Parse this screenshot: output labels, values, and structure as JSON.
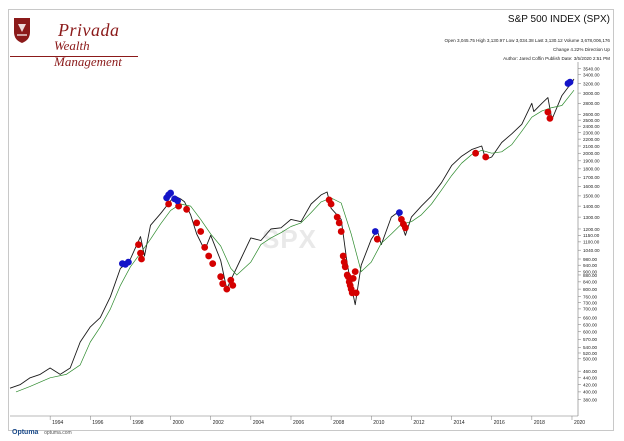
{
  "brand": {
    "name": "Privada",
    "subtitle": "Wealth Management"
  },
  "header": {
    "title": "S&P 500 INDEX (SPX)",
    "stats": "Open 3,045.75   High 3,130.97   Low 3,034.38   Last 3,130.12   Volume 3,678,006,176",
    "change": "Change 4.22%   Direction Up",
    "author": "Author: Jared Coffin    Publish Date: 3/5/2020 2:51 PM"
  },
  "watermark": "SPX",
  "footer": {
    "logo": "Optuma",
    "url": "optuma.com"
  },
  "chart_data": {
    "type": "line",
    "yscale": "log",
    "ylim": [
      340,
      3700
    ],
    "xlim": [
      1992.0,
      2020.3
    ],
    "x_ticks": [
      "1994",
      "1996",
      "1998",
      "2000",
      "2002",
      "2004",
      "2006",
      "2008",
      "2010",
      "2012",
      "2014",
      "2016",
      "2018",
      "2020"
    ],
    "y_ticks": [
      "380.00",
      "400.00",
      "420.00",
      "440.00",
      "460.00",
      "500.00",
      "520.00",
      "540.00",
      "570.00",
      "600.00",
      "630.00",
      "660.00",
      "700.00",
      "730.00",
      "760.00",
      "800.00",
      "840.00",
      "880.00",
      "900.00",
      "940.00",
      "980.00",
      "1040.00",
      "1100.00",
      "1150.00",
      "1200.00",
      "1300.00",
      "1400.00",
      "1500.00",
      "1600.00",
      "1700.00",
      "1800.00",
      "1900.00",
      "2000.00",
      "2100.00",
      "2200.00",
      "2300.00",
      "2400.00",
      "2500.00",
      "2600.00",
      "2800.00",
      "3000.00",
      "3200.00",
      "3400.00",
      "3540.00"
    ],
    "series": [
      {
        "type": "line",
        "color": "#1a1a1a",
        "x": [
          1992.0,
          1992.5,
          1993.0,
          1993.5,
          1994.0,
          1994.5,
          1995.0,
          1995.5,
          1996.0,
          1996.5,
          1997.0,
          1997.5,
          1997.8,
          1998.0,
          1998.5,
          1998.7,
          1999.0,
          1999.5,
          2000.0,
          2000.2,
          2000.5,
          2000.7,
          2001.0,
          2001.3,
          2001.7,
          2002.0,
          2002.5,
          2002.8,
          2003.0,
          2003.5,
          2004.0,
          2004.5,
          2005.0,
          2005.5,
          2006.0,
          2006.5,
          2007.0,
          2007.5,
          2007.8,
          2008.0,
          2008.5,
          2008.8,
          2009.0,
          2009.2,
          2009.5,
          2010.0,
          2010.3,
          2010.5,
          2011.0,
          2011.3,
          2011.7,
          2012.0,
          2012.5,
          2013.0,
          2013.5,
          2014.0,
          2014.5,
          2015.0,
          2015.5,
          2015.7,
          2016.0,
          2016.5,
          2017.0,
          2017.5,
          2018.0,
          2018.1,
          2018.5,
          2018.8,
          2019.0,
          2019.5,
          2020.0,
          2020.1
        ],
        "y": [
          410,
          420,
          440,
          450,
          470,
          450,
          470,
          560,
          620,
          660,
          760,
          920,
          950,
          980,
          1140,
          1000,
          1230,
          1330,
          1450,
          1500,
          1470,
          1440,
          1320,
          1160,
          1040,
          1150,
          970,
          800,
          850,
          980,
          1130,
          1110,
          1200,
          1210,
          1280,
          1260,
          1420,
          1510,
          1540,
          1380,
          1280,
          950,
          820,
          720,
          940,
          1120,
          1190,
          1080,
          1300,
          1340,
          1150,
          1300,
          1400,
          1500,
          1640,
          1840,
          1960,
          2050,
          2100,
          1920,
          1950,
          2150,
          2280,
          2430,
          2800,
          2650,
          2800,
          2910,
          2510,
          2950,
          3230,
          3300
        ]
      },
      {
        "type": "line",
        "color": "#2e8b2e",
        "x": [
          1992.3,
          1993.0,
          1994.0,
          1994.8,
          1995.5,
          1996.0,
          1996.5,
          1997.0,
          1997.5,
          1998.0,
          1998.5,
          1999.0,
          1999.5,
          2000.0,
          2000.5,
          2001.0,
          2001.5,
          2002.0,
          2002.5,
          2003.0,
          2003.3,
          2004.0,
          2004.5,
          2005.0,
          2005.5,
          2006.0,
          2006.5,
          2007.0,
          2007.5,
          2008.0,
          2008.5,
          2009.0,
          2009.5,
          2010.0,
          2010.5,
          2011.0,
          2011.5,
          2012.0,
          2012.5,
          2013.0,
          2013.5,
          2014.0,
          2014.5,
          2015.0,
          2015.5,
          2016.0,
          2016.5,
          2017.0,
          2017.5,
          2018.0,
          2018.5,
          2019.0,
          2019.5,
          2020.1
        ],
        "y": [
          400,
          415,
          440,
          450,
          480,
          560,
          620,
          700,
          820,
          930,
          1020,
          1120,
          1240,
          1360,
          1420,
          1400,
          1280,
          1160,
          1070,
          920,
          880,
          960,
          1080,
          1130,
          1170,
          1220,
          1250,
          1340,
          1440,
          1480,
          1430,
          1160,
          900,
          960,
          1090,
          1160,
          1240,
          1260,
          1320,
          1420,
          1560,
          1720,
          1870,
          1980,
          2040,
          2000,
          2020,
          2120,
          2320,
          2550,
          2660,
          2720,
          2760,
          3060
        ]
      }
    ],
    "markers": [
      {
        "color": "#d40000",
        "points": [
          [
            1998.4,
            1080
          ],
          [
            1998.5,
            1020
          ],
          [
            1998.55,
            980
          ],
          [
            1999.9,
            1420
          ],
          [
            2000.4,
            1400
          ],
          [
            2000.8,
            1370
          ],
          [
            2001.3,
            1250
          ],
          [
            2001.5,
            1180
          ],
          [
            2001.7,
            1060
          ],
          [
            2001.9,
            1000
          ],
          [
            2002.1,
            950
          ],
          [
            2002.5,
            870
          ],
          [
            2002.6,
            830
          ],
          [
            2002.8,
            800
          ],
          [
            2003.0,
            850
          ],
          [
            2003.1,
            820
          ],
          [
            2007.9,
            1460
          ],
          [
            2008.0,
            1420
          ],
          [
            2008.3,
            1300
          ],
          [
            2008.4,
            1250
          ],
          [
            2008.5,
            1180
          ],
          [
            2008.6,
            1000
          ],
          [
            2008.65,
            960
          ],
          [
            2008.7,
            930
          ],
          [
            2008.8,
            880
          ],
          [
            2008.85,
            870
          ],
          [
            2008.9,
            840
          ],
          [
            2008.95,
            820
          ],
          [
            2009.0,
            800
          ],
          [
            2009.05,
            780
          ],
          [
            2009.1,
            860
          ],
          [
            2009.2,
            900
          ],
          [
            2009.25,
            780
          ],
          [
            2010.3,
            1120
          ],
          [
            2011.5,
            1280
          ],
          [
            2011.6,
            1240
          ],
          [
            2011.7,
            1210
          ],
          [
            2015.2,
            2000
          ],
          [
            2015.7,
            1950
          ],
          [
            2018.8,
            2640
          ],
          [
            2018.9,
            2530
          ]
        ]
      },
      {
        "color": "#1414c8",
        "points": [
          [
            1997.6,
            950
          ],
          [
            1997.75,
            945
          ],
          [
            1997.9,
            960
          ],
          [
            1999.8,
            1480
          ],
          [
            1999.9,
            1510
          ],
          [
            2000.0,
            1530
          ],
          [
            2000.2,
            1470
          ],
          [
            2000.35,
            1450
          ],
          [
            2010.2,
            1180
          ],
          [
            2011.4,
            1340
          ],
          [
            2019.8,
            3200
          ],
          [
            2019.9,
            3230
          ]
        ]
      }
    ]
  }
}
